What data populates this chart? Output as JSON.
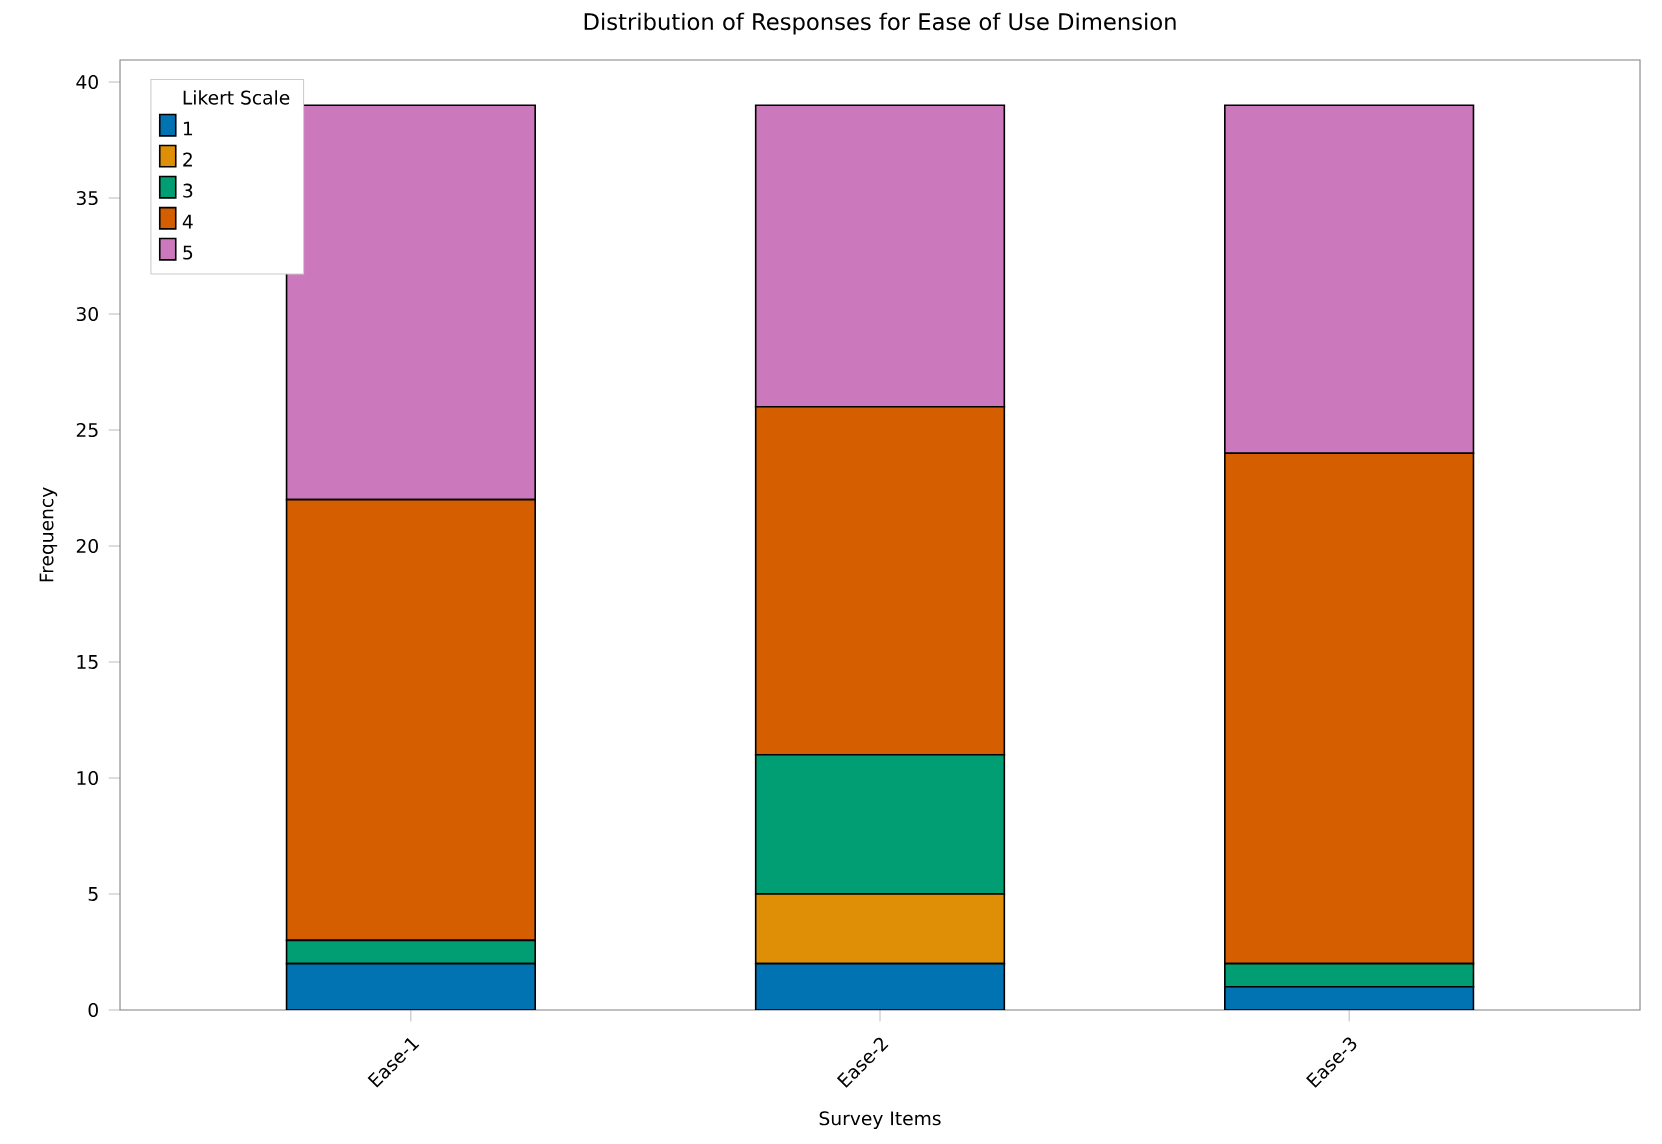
{
  "chart_data": {
    "type": "bar",
    "title": "Distribution of Responses for Ease of Use Dimension",
    "xlabel": "Survey Items",
    "ylabel": "Frequency",
    "legend_title": "Likert Scale",
    "legend": "top left",
    "stacked": true,
    "categories": [
      "Ease-1",
      "Ease-2",
      "Ease-3"
    ],
    "series": [
      {
        "name": "1",
        "color": "#0173b2",
        "values": [
          2,
          2,
          1
        ]
      },
      {
        "name": "2",
        "color": "#de8f05",
        "values": [
          0,
          3,
          0
        ]
      },
      {
        "name": "3",
        "color": "#029e73",
        "values": [
          1,
          6,
          1
        ]
      },
      {
        "name": "4",
        "color": "#d55e00",
        "values": [
          19,
          15,
          22
        ]
      },
      {
        "name": "5",
        "color": "#cc78bc",
        "values": [
          17,
          13,
          15
        ]
      }
    ],
    "ylim": [
      0,
      40.95
    ],
    "yticks": [
      0,
      5,
      10,
      15,
      20,
      25,
      30,
      35,
      40
    ]
  }
}
